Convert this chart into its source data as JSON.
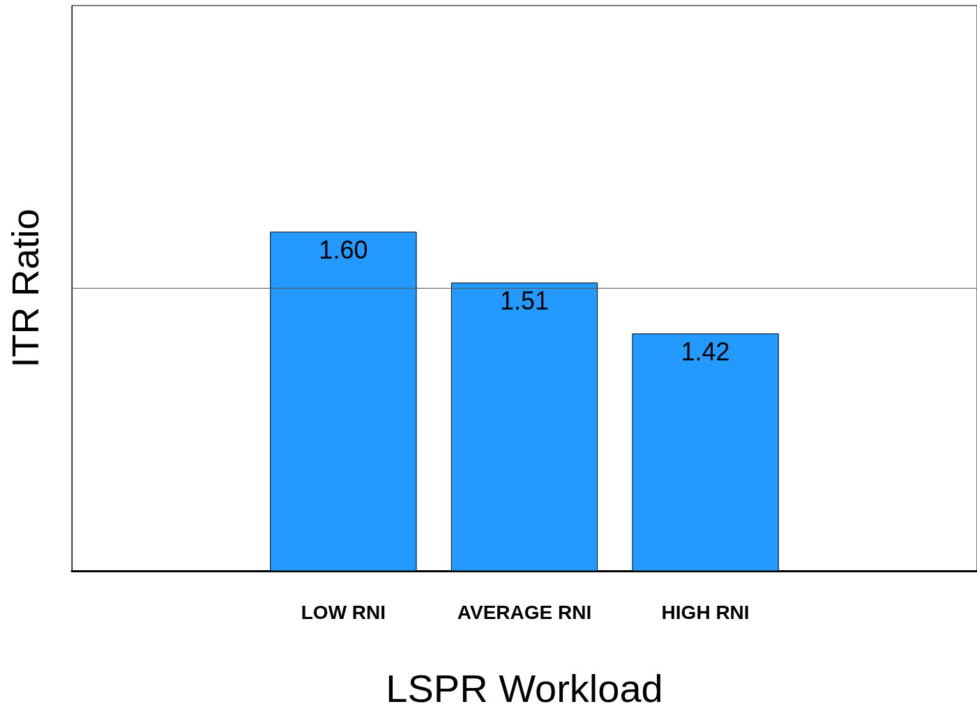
{
  "chart_data": {
    "type": "bar",
    "xlabel": "LSPR Workload",
    "ylabel": "ITR Ratio",
    "categories": [
      null,
      "LOW RNI",
      "AVERAGE RNI",
      "HIGH RNI",
      null
    ],
    "values": [
      null,
      1.6,
      1.51,
      1.42,
      null
    ],
    "value_labels": [
      null,
      "1.60",
      "1.51",
      "1.42",
      null
    ],
    "color": "#2499ff",
    "ylim": [
      1,
      2
    ],
    "ref_lines": [
      {
        "axis": "y",
        "value": 1.5
      }
    ],
    "tick_labels": "x"
  }
}
